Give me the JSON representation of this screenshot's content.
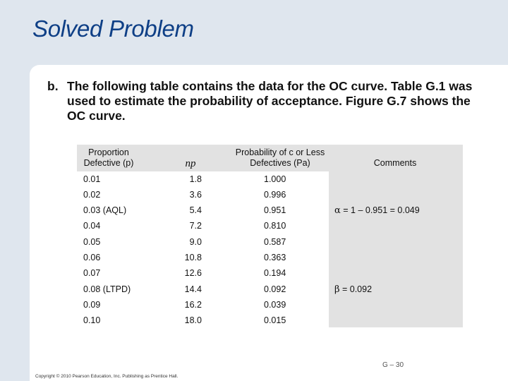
{
  "slide_title": "Solved Problem",
  "intro": {
    "label": "b.",
    "text": "The following table contains the data for the OC curve. Table G.1 was used to estimate the probability of acceptance. Figure G.7 shows the OC curve."
  },
  "table": {
    "headers": {
      "proportion": "Proportion Defective (p)",
      "np": "np",
      "probability": "Probability of c or Less Defectives (Pa)",
      "comments": "Comments"
    },
    "rows": [
      {
        "p": "0.01",
        "np": "1.8",
        "pa": "1.000"
      },
      {
        "p": "0.02",
        "np": "3.6",
        "pa": "0.996"
      },
      {
        "p": "0.03 (AQL)",
        "np": "5.4",
        "pa": "0.951"
      },
      {
        "p": "0.04",
        "np": "7.2",
        "pa": "0.810"
      },
      {
        "p": "0.05",
        "np": "9.0",
        "pa": "0.587"
      },
      {
        "p": "0.06",
        "np": "10.8",
        "pa": "0.363"
      },
      {
        "p": "0.07",
        "np": "12.6",
        "pa": "0.194"
      },
      {
        "p": "0.08 (LTPD)",
        "np": "14.4",
        "pa": "0.092"
      },
      {
        "p": "0.09",
        "np": "16.2",
        "pa": "0.039"
      },
      {
        "p": "0.10",
        "np": "18.0",
        "pa": "0.015"
      }
    ],
    "comments": [
      {
        "symbol": "α",
        "text": " = 1 – 0.951 = 0.049"
      },
      {
        "symbol": "β",
        "text": " = 0.092"
      }
    ]
  },
  "page_number": "G – 30",
  "copyright": "Copyright © 2010 Pearson Education, Inc. Publishing as Prentice Hall."
}
